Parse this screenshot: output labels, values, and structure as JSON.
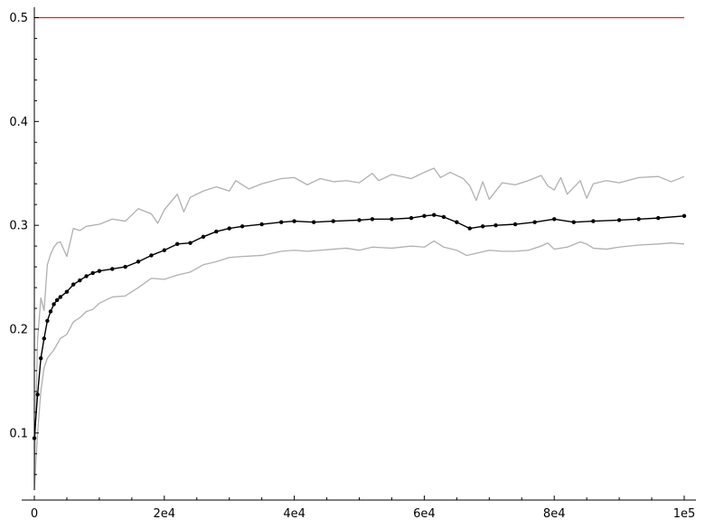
{
  "chart_data": {
    "type": "line",
    "title": "",
    "xlabel": "",
    "ylabel": "",
    "xlim": [
      0,
      100000
    ],
    "ylim": [
      0.045,
      0.51
    ],
    "grid": false,
    "x_ticks": [
      {
        "value": 0,
        "label": "0"
      },
      {
        "value": 20000,
        "label": "2e4"
      },
      {
        "value": 40000,
        "label": "4e4"
      },
      {
        "value": 60000,
        "label": "6e4"
      },
      {
        "value": 80000,
        "label": "8e4"
      },
      {
        "value": 100000,
        "label": "1e5"
      }
    ],
    "y_ticks": [
      {
        "value": 0.1,
        "label": "0.1"
      },
      {
        "value": 0.2,
        "label": "0.2"
      },
      {
        "value": 0.3,
        "label": "0.3"
      },
      {
        "value": 0.4,
        "label": "0.4"
      },
      {
        "value": 0.5,
        "label": "0.5"
      }
    ],
    "series": [
      {
        "role": "mean",
        "color": "#000000",
        "markers": true,
        "x": [
          0,
          500,
          1000,
          1500,
          2000,
          2500,
          3000,
          3500,
          4000,
          5000,
          6000,
          7000,
          8000,
          9000,
          10000,
          12000,
          14000,
          16000,
          18000,
          20000,
          22000,
          24000,
          26000,
          28000,
          30000,
          32000,
          35000,
          38000,
          40000,
          43000,
          46000,
          50000,
          52000,
          55000,
          58000,
          60000,
          61500,
          63000,
          65000,
          67000,
          69000,
          71000,
          74000,
          77000,
          80000,
          83000,
          86000,
          90000,
          93000,
          96000,
          100000
        ],
        "y": [
          0.095,
          0.137,
          0.172,
          0.191,
          0.208,
          0.217,
          0.224,
          0.228,
          0.231,
          0.236,
          0.243,
          0.247,
          0.251,
          0.254,
          0.256,
          0.258,
          0.26,
          0.265,
          0.271,
          0.276,
          0.282,
          0.283,
          0.289,
          0.294,
          0.297,
          0.299,
          0.301,
          0.303,
          0.304,
          0.303,
          0.304,
          0.305,
          0.306,
          0.306,
          0.307,
          0.309,
          0.31,
          0.308,
          0.303,
          0.297,
          0.299,
          0.3,
          0.301,
          0.303,
          0.306,
          0.303,
          0.304,
          0.305,
          0.306,
          0.307,
          0.309
        ]
      },
      {
        "role": "upper band",
        "color": "#b0b0b0",
        "markers": false,
        "x": [
          0,
          500,
          1000,
          1500,
          2000,
          2500,
          3000,
          3500,
          4000,
          5000,
          6000,
          7000,
          8000,
          10000,
          12000,
          14000,
          16000,
          18000,
          19000,
          20000,
          22000,
          23000,
          24000,
          26000,
          28000,
          30000,
          31000,
          33000,
          35000,
          38000,
          40000,
          42000,
          44000,
          46000,
          48000,
          50000,
          52000,
          53000,
          55000,
          58000,
          60000,
          61500,
          62500,
          64000,
          66000,
          67000,
          68000,
          69000,
          70000,
          72000,
          74000,
          76000,
          78000,
          79000,
          80000,
          81000,
          82000,
          84000,
          85000,
          86000,
          88000,
          90000,
          93000,
          96000,
          98000,
          100000
        ],
        "y": [
          0.06,
          0.19,
          0.23,
          0.218,
          0.262,
          0.272,
          0.279,
          0.283,
          0.284,
          0.27,
          0.297,
          0.295,
          0.299,
          0.301,
          0.306,
          0.304,
          0.316,
          0.311,
          0.302,
          0.315,
          0.33,
          0.313,
          0.327,
          0.333,
          0.337,
          0.333,
          0.343,
          0.335,
          0.34,
          0.345,
          0.346,
          0.339,
          0.345,
          0.342,
          0.343,
          0.341,
          0.35,
          0.343,
          0.349,
          0.345,
          0.351,
          0.355,
          0.346,
          0.351,
          0.345,
          0.338,
          0.324,
          0.342,
          0.325,
          0.341,
          0.339,
          0.343,
          0.348,
          0.338,
          0.334,
          0.346,
          0.33,
          0.343,
          0.326,
          0.34,
          0.343,
          0.341,
          0.346,
          0.347,
          0.342,
          0.347
        ]
      },
      {
        "role": "lower band",
        "color": "#b0b0b0",
        "markers": false,
        "x": [
          0,
          500,
          1000,
          1500,
          2000,
          3000,
          4000,
          5000,
          6000,
          7000,
          8000,
          9000,
          10000,
          12000,
          14000,
          16000,
          18000,
          20000,
          22000,
          24000,
          26000,
          28000,
          30000,
          32000,
          35000,
          38000,
          40000,
          42000,
          44000,
          46000,
          48000,
          50000,
          52000,
          55000,
          58000,
          60000,
          61500,
          63000,
          65000,
          66500,
          68000,
          70000,
          72000,
          74000,
          76000,
          78000,
          79000,
          80000,
          82000,
          84000,
          85000,
          86000,
          88000,
          90000,
          93000,
          96000,
          98000,
          100000
        ],
        "y": [
          0.045,
          0.1,
          0.14,
          0.163,
          0.172,
          0.18,
          0.191,
          0.195,
          0.207,
          0.211,
          0.217,
          0.219,
          0.225,
          0.231,
          0.232,
          0.24,
          0.249,
          0.248,
          0.252,
          0.255,
          0.262,
          0.265,
          0.269,
          0.27,
          0.271,
          0.275,
          0.276,
          0.275,
          0.276,
          0.277,
          0.278,
          0.276,
          0.279,
          0.278,
          0.28,
          0.279,
          0.285,
          0.279,
          0.276,
          0.271,
          0.273,
          0.276,
          0.275,
          0.275,
          0.276,
          0.28,
          0.283,
          0.277,
          0.279,
          0.284,
          0.282,
          0.278,
          0.277,
          0.279,
          0.281,
          0.282,
          0.283,
          0.282
        ]
      },
      {
        "role": "reference line",
        "color": "#e8231a",
        "markers": false,
        "x": [
          0,
          100000
        ],
        "y": [
          0.5,
          0.5
        ]
      }
    ]
  }
}
